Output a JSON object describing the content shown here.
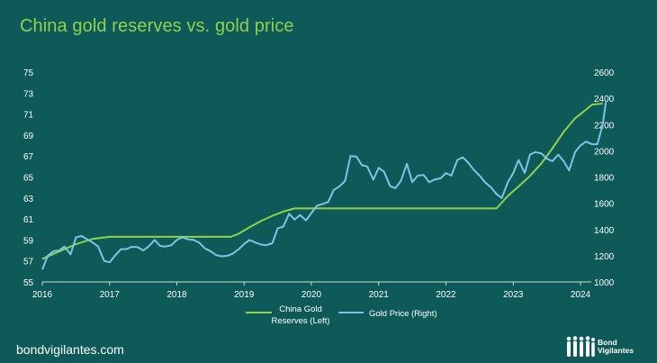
{
  "title": "China gold reserves vs. gold price",
  "footer": {
    "url": "bondvigilantes.com",
    "logo_text_1": "Bond",
    "logo_text_2": "Vigilantes"
  },
  "colors": {
    "background": "#0e5a59",
    "reserves": "#8fd14f",
    "price": "#7ec3e6",
    "axis": "#c9d9d9"
  },
  "chart_data": {
    "type": "line",
    "x_ticks": [
      "2016",
      "2017",
      "2018",
      "2019",
      "2020",
      "2021",
      "2022",
      "2023",
      "2024"
    ],
    "y_left": {
      "ticks": [
        55,
        57,
        59,
        61,
        63,
        65,
        67,
        69,
        71,
        73,
        75
      ],
      "range": [
        55,
        75
      ]
    },
    "y_right": {
      "ticks": [
        1000,
        1200,
        1400,
        1600,
        1800,
        2000,
        2200,
        2400,
        2600
      ],
      "range": [
        1000,
        2600
      ]
    },
    "legend_position": "bottom",
    "grid": false,
    "series": [
      {
        "name": "China Gold Reserves (Left)",
        "axis": "left",
        "points": [
          [
            2016.0,
            57.2
          ],
          [
            2016.25,
            57.9
          ],
          [
            2016.5,
            58.6
          ],
          [
            2016.75,
            59.1
          ],
          [
            2017.0,
            59.3
          ],
          [
            2017.5,
            59.3
          ],
          [
            2018.0,
            59.3
          ],
          [
            2018.5,
            59.3
          ],
          [
            2018.8,
            59.3
          ],
          [
            2018.92,
            59.6
          ],
          [
            2019.08,
            60.2
          ],
          [
            2019.25,
            60.8
          ],
          [
            2019.42,
            61.3
          ],
          [
            2019.58,
            61.7
          ],
          [
            2019.75,
            62.0
          ],
          [
            2020.0,
            62.0
          ],
          [
            2020.5,
            62.0
          ],
          [
            2021.0,
            62.0
          ],
          [
            2021.5,
            62.0
          ],
          [
            2022.0,
            62.0
          ],
          [
            2022.5,
            62.0
          ],
          [
            2022.75,
            62.0
          ],
          [
            2022.92,
            63.2
          ],
          [
            2023.08,
            64.1
          ],
          [
            2023.25,
            65.1
          ],
          [
            2023.42,
            66.3
          ],
          [
            2023.58,
            67.7
          ],
          [
            2023.75,
            69.3
          ],
          [
            2023.92,
            70.6
          ],
          [
            2024.08,
            71.4
          ],
          [
            2024.17,
            71.9
          ],
          [
            2024.33,
            72.0
          ]
        ]
      },
      {
        "name": "Gold Price (Right)",
        "axis": "right",
        "points": [
          [
            2016.0,
            1095
          ],
          [
            2016.08,
            1200
          ],
          [
            2016.17,
            1235
          ],
          [
            2016.25,
            1240
          ],
          [
            2016.33,
            1270
          ],
          [
            2016.42,
            1210
          ],
          [
            2016.5,
            1340
          ],
          [
            2016.58,
            1350
          ],
          [
            2016.67,
            1325
          ],
          [
            2016.75,
            1300
          ],
          [
            2016.83,
            1270
          ],
          [
            2016.92,
            1160
          ],
          [
            2017.0,
            1150
          ],
          [
            2017.08,
            1200
          ],
          [
            2017.17,
            1250
          ],
          [
            2017.25,
            1250
          ],
          [
            2017.33,
            1268
          ],
          [
            2017.42,
            1265
          ],
          [
            2017.5,
            1240
          ],
          [
            2017.58,
            1270
          ],
          [
            2017.67,
            1320
          ],
          [
            2017.75,
            1275
          ],
          [
            2017.83,
            1270
          ],
          [
            2017.92,
            1280
          ],
          [
            2018.0,
            1320
          ],
          [
            2018.08,
            1340
          ],
          [
            2018.17,
            1325
          ],
          [
            2018.25,
            1320
          ],
          [
            2018.33,
            1300
          ],
          [
            2018.42,
            1255
          ],
          [
            2018.5,
            1235
          ],
          [
            2018.58,
            1205
          ],
          [
            2018.67,
            1195
          ],
          [
            2018.75,
            1200
          ],
          [
            2018.83,
            1215
          ],
          [
            2018.92,
            1250
          ],
          [
            2019.0,
            1290
          ],
          [
            2019.08,
            1320
          ],
          [
            2019.17,
            1300
          ],
          [
            2019.25,
            1285
          ],
          [
            2019.33,
            1280
          ],
          [
            2019.42,
            1295
          ],
          [
            2019.5,
            1410
          ],
          [
            2019.58,
            1420
          ],
          [
            2019.67,
            1520
          ],
          [
            2019.75,
            1475
          ],
          [
            2019.83,
            1510
          ],
          [
            2019.92,
            1470
          ],
          [
            2020.0,
            1525
          ],
          [
            2020.08,
            1580
          ],
          [
            2020.17,
            1595
          ],
          [
            2020.25,
            1610
          ],
          [
            2020.33,
            1700
          ],
          [
            2020.42,
            1730
          ],
          [
            2020.5,
            1770
          ],
          [
            2020.58,
            1960
          ],
          [
            2020.67,
            1955
          ],
          [
            2020.75,
            1890
          ],
          [
            2020.83,
            1880
          ],
          [
            2020.92,
            1780
          ],
          [
            2021.0,
            1870
          ],
          [
            2021.08,
            1840
          ],
          [
            2021.17,
            1730
          ],
          [
            2021.25,
            1715
          ],
          [
            2021.33,
            1770
          ],
          [
            2021.42,
            1900
          ],
          [
            2021.5,
            1760
          ],
          [
            2021.58,
            1810
          ],
          [
            2021.67,
            1815
          ],
          [
            2021.75,
            1760
          ],
          [
            2021.83,
            1780
          ],
          [
            2021.92,
            1790
          ],
          [
            2022.0,
            1830
          ],
          [
            2022.08,
            1810
          ],
          [
            2022.17,
            1930
          ],
          [
            2022.25,
            1950
          ],
          [
            2022.33,
            1910
          ],
          [
            2022.42,
            1850
          ],
          [
            2022.5,
            1810
          ],
          [
            2022.58,
            1760
          ],
          [
            2022.67,
            1720
          ],
          [
            2022.75,
            1670
          ],
          [
            2022.83,
            1640
          ],
          [
            2022.92,
            1760
          ],
          [
            2023.0,
            1830
          ],
          [
            2023.08,
            1930
          ],
          [
            2023.17,
            1830
          ],
          [
            2023.25,
            1970
          ],
          [
            2023.33,
            1990
          ],
          [
            2023.42,
            1980
          ],
          [
            2023.5,
            1940
          ],
          [
            2023.58,
            1920
          ],
          [
            2023.67,
            1970
          ],
          [
            2023.75,
            1920
          ],
          [
            2023.83,
            1850
          ],
          [
            2023.92,
            1990
          ],
          [
            2024.0,
            2040
          ],
          [
            2024.08,
            2070
          ],
          [
            2024.17,
            2050
          ],
          [
            2024.25,
            2050
          ],
          [
            2024.33,
            2200
          ],
          [
            2024.38,
            2380
          ]
        ]
      }
    ]
  }
}
